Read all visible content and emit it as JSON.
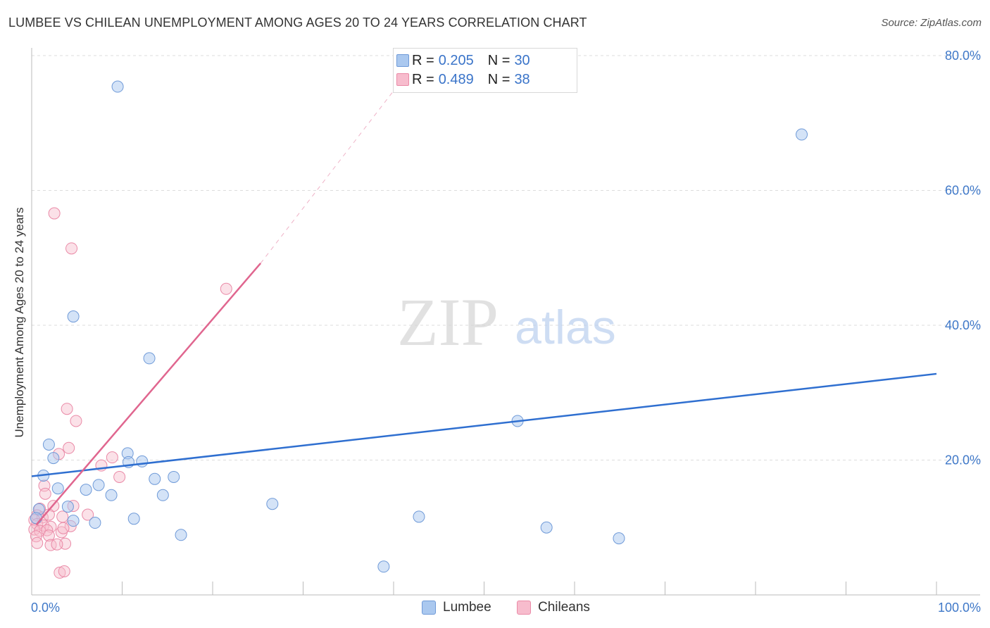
{
  "title": "LUMBEE VS CHILEAN UNEMPLOYMENT AMONG AGES 20 TO 24 YEARS CORRELATION CHART",
  "source": "Source: ZipAtlas.com",
  "colors": {
    "lumbee_fill": "#aac8ef",
    "lumbee_stroke": "#6f9ad8",
    "lumbee_line": "#2f6fd0",
    "chileans_fill": "#f7bccd",
    "chileans_stroke": "#ea8aa7",
    "chileans_line": "#e0668f",
    "grid": "#dddddd",
    "tick_label": "#3f78c8",
    "axis": "#bbbbbb"
  },
  "legend_top": {
    "rows": [
      {
        "r_label": "R =",
        "r_value": "0.205",
        "n_label": "N =",
        "n_value": "30"
      },
      {
        "r_label": "R =",
        "r_value": "0.489",
        "n_label": "N =",
        "n_value": "38"
      }
    ]
  },
  "legend_bottom": {
    "lumbee": "Lumbee",
    "chileans": "Chileans"
  },
  "watermark": {
    "zip": "ZIP",
    "atlas": "atlas"
  },
  "chart_data": {
    "type": "scatter",
    "title": "LUMBEE VS CHILEAN UNEMPLOYMENT AMONG AGES 20 TO 24 YEARS CORRELATION CHART",
    "xlabel": "",
    "ylabel": "Unemployment Among Ages 20 to 24 years",
    "xlim": [
      0,
      100
    ],
    "ylim": [
      0,
      80
    ],
    "x_tick_labels": [
      "0.0%",
      "100.0%"
    ],
    "y_ticks": [
      20,
      40,
      60,
      80
    ],
    "y_tick_labels": [
      "20.0%",
      "40.0%",
      "60.0%",
      "80.0%"
    ],
    "grid": true,
    "legend_position": "top-center",
    "series": [
      {
        "name": "Lumbee",
        "R": 0.205,
        "N": 30,
        "trend": {
          "x0": 0,
          "y0": 17.6,
          "x1": 100,
          "y1": 32.8
        },
        "points": [
          [
            9.5,
            75.4
          ],
          [
            85.1,
            68.3
          ],
          [
            4.6,
            41.3
          ],
          [
            13,
            35.1
          ],
          [
            53.7,
            25.8
          ],
          [
            1.9,
            22.3
          ],
          [
            10.6,
            21
          ],
          [
            2.4,
            20.3
          ],
          [
            10.7,
            19.7
          ],
          [
            12.2,
            19.8
          ],
          [
            1.3,
            17.7
          ],
          [
            15.7,
            17.5
          ],
          [
            13.6,
            17.2
          ],
          [
            7.4,
            16.3
          ],
          [
            2.9,
            15.8
          ],
          [
            6,
            15.6
          ],
          [
            8.8,
            14.8
          ],
          [
            14.5,
            14.8
          ],
          [
            26.6,
            13.5
          ],
          [
            4,
            13.1
          ],
          [
            0.8,
            12.7
          ],
          [
            4.6,
            11
          ],
          [
            7,
            10.7
          ],
          [
            11.3,
            11.3
          ],
          [
            0.5,
            11.4
          ],
          [
            42.8,
            11.6
          ],
          [
            56.9,
            10
          ],
          [
            16.5,
            8.9
          ],
          [
            64.9,
            8.4
          ],
          [
            38.9,
            4.2
          ]
        ]
      },
      {
        "name": "Chileans",
        "R": 0.489,
        "N": 38,
        "trend": {
          "x0": 0.5,
          "y0": 10.4,
          "x1": 25.3,
          "y1": 49.2,
          "dash_x1": 43,
          "dash_y1": 80
        },
        "points": [
          [
            2.5,
            56.6
          ],
          [
            4.4,
            51.4
          ],
          [
            21.5,
            45.4
          ],
          [
            3.9,
            27.6
          ],
          [
            4.9,
            25.8
          ],
          [
            4.1,
            21.8
          ],
          [
            3,
            20.9
          ],
          [
            8.9,
            20.4
          ],
          [
            7.7,
            19.2
          ],
          [
            9.7,
            17.5
          ],
          [
            1.4,
            16.2
          ],
          [
            1.5,
            15
          ],
          [
            2.4,
            13.2
          ],
          [
            0.9,
            12.8
          ],
          [
            4.6,
            13.2
          ],
          [
            0.6,
            11.8
          ],
          [
            1.2,
            11.5
          ],
          [
            1.9,
            11.9
          ],
          [
            3.4,
            11.6
          ],
          [
            6.2,
            11.9
          ],
          [
            0.3,
            11.1
          ],
          [
            0.6,
            10.5
          ],
          [
            1.3,
            10.3
          ],
          [
            2.1,
            10.1
          ],
          [
            4.3,
            10.2
          ],
          [
            0.3,
            9.7
          ],
          [
            0.9,
            9.5
          ],
          [
            1.7,
            9.6
          ],
          [
            3.3,
            9.3
          ],
          [
            0.5,
            8.7
          ],
          [
            1.9,
            8.8
          ],
          [
            0.6,
            7.7
          ],
          [
            2.1,
            7.4
          ],
          [
            3.7,
            7.6
          ],
          [
            2.8,
            7.5
          ],
          [
            3.1,
            3.3
          ],
          [
            3.6,
            3.5
          ],
          [
            3.5,
            9.9
          ]
        ]
      }
    ]
  }
}
